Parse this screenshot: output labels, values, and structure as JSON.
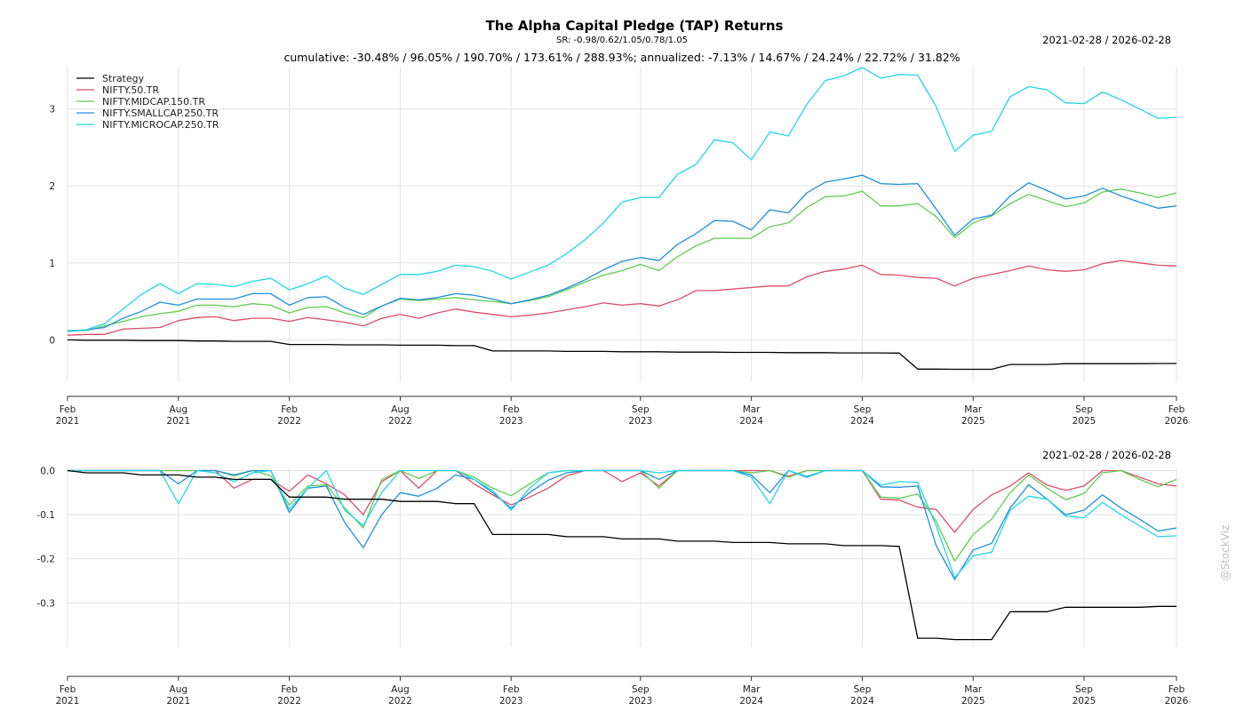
{
  "header": {
    "title": "The Alpha Capital Pledge (TAP) Returns",
    "sharpe": "SR: -0.98/0.62/1.05/0.78/1.05",
    "stats": "cumulative: -30.48% / 96.05% / 190.70% / 173.61% / 288.93%; annualized: -7.13% / 14.67% / 24.24% / 22.72% / 31.82%",
    "date_range_top": "2021-02-28 / 2026-02-28",
    "date_range_bottom": "2021-02-28 / 2026-02-28",
    "watermark": "@StockViz"
  },
  "chart_data": [
    {
      "type": "line",
      "name": "cumulative-returns",
      "x": [
        "2021-02",
        "2021-03",
        "2021-04",
        "2021-05",
        "2021-06",
        "2021-07",
        "2021-08",
        "2021-09",
        "2021-10",
        "2021-11",
        "2021-12",
        "2022-01",
        "2022-02",
        "2022-03",
        "2022-04",
        "2022-05",
        "2022-06",
        "2022-07",
        "2022-08",
        "2022-09",
        "2022-10",
        "2022-11",
        "2022-12",
        "2023-01",
        "2023-02",
        "2023-03",
        "2023-04",
        "2023-05",
        "2023-06",
        "2023-07",
        "2023-08",
        "2023-09",
        "2023-10",
        "2023-11",
        "2023-12",
        "2024-01",
        "2024-02",
        "2024-03",
        "2024-04",
        "2024-05",
        "2024-06",
        "2024-07",
        "2024-08",
        "2024-09",
        "2024-10",
        "2024-11",
        "2024-12",
        "2025-01",
        "2025-02",
        "2025-03",
        "2025-04",
        "2025-05",
        "2025-06",
        "2025-07",
        "2025-08",
        "2025-09",
        "2025-10",
        "2025-11",
        "2025-12",
        "2026-01",
        "2026-02"
      ],
      "x_ticks": [
        {
          "date": "2021-02",
          "label": [
            "Feb",
            "2021"
          ]
        },
        {
          "date": "2021-08",
          "label": [
            "Aug",
            "2021"
          ]
        },
        {
          "date": "2022-02",
          "label": [
            "Feb",
            "2022"
          ]
        },
        {
          "date": "2022-08",
          "label": [
            "Aug",
            "2022"
          ]
        },
        {
          "date": "2023-02",
          "label": [
            "Feb",
            "2023"
          ]
        },
        {
          "date": "2023-09",
          "label": [
            "Sep",
            "2023"
          ]
        },
        {
          "date": "2024-03",
          "label": [
            "Mar",
            "2024"
          ]
        },
        {
          "date": "2024-09",
          "label": [
            "Sep",
            "2024"
          ]
        },
        {
          "date": "2025-03",
          "label": [
            "Mar",
            "2025"
          ]
        },
        {
          "date": "2025-09",
          "label": [
            "Sep",
            "2025"
          ]
        },
        {
          "date": "2026-02",
          "label": [
            "Feb",
            "2026"
          ]
        }
      ],
      "y_ticks": [
        0,
        1,
        2,
        3
      ],
      "ylim": [
        -0.55,
        3.55
      ],
      "grid": true,
      "legend_position": "top-left",
      "series": [
        {
          "name": "Strategy",
          "color": "#000000",
          "values": [
            0,
            -0.005,
            -0.005,
            -0.005,
            -0.01,
            -0.01,
            -0.01,
            -0.015,
            -0.015,
            -0.02,
            -0.02,
            -0.02,
            -0.06,
            -0.06,
            -0.06,
            -0.065,
            -0.065,
            -0.065,
            -0.07,
            -0.07,
            -0.07,
            -0.075,
            -0.075,
            -0.145,
            -0.145,
            -0.145,
            -0.145,
            -0.15,
            -0.15,
            -0.15,
            -0.155,
            -0.155,
            -0.155,
            -0.16,
            -0.16,
            -0.16,
            -0.163,
            -0.163,
            -0.163,
            -0.166,
            -0.166,
            -0.166,
            -0.17,
            -0.17,
            -0.17,
            -0.172,
            -0.38,
            -0.38,
            -0.383,
            -0.383,
            -0.383,
            -0.32,
            -0.32,
            -0.32,
            -0.31,
            -0.31,
            -0.31,
            -0.31,
            -0.31,
            -0.308,
            -0.308
          ]
        },
        {
          "name": "NIFTY.50.TR",
          "color": "#dc4d6b",
          "values": [
            0.06,
            0.07,
            0.07,
            0.14,
            0.15,
            0.16,
            0.25,
            0.29,
            0.3,
            0.25,
            0.28,
            0.28,
            0.24,
            0.29,
            0.26,
            0.23,
            0.18,
            0.28,
            0.33,
            0.28,
            0.35,
            0.4,
            0.36,
            0.33,
            0.3,
            0.32,
            0.35,
            0.39,
            0.43,
            0.48,
            0.45,
            0.47,
            0.44,
            0.52,
            0.64,
            0.64,
            0.66,
            0.68,
            0.7,
            0.7,
            0.82,
            0.89,
            0.92,
            0.97,
            0.85,
            0.84,
            0.81,
            0.8,
            0.7,
            0.8,
            0.85,
            0.9,
            0.96,
            0.91,
            0.89,
            0.91,
            0.99,
            1.03,
            1.0,
            0.97,
            0.96
          ]
        },
        {
          "name": "NIFTY.MIDCAP.150.TR",
          "color": "#5fcd4f",
          "values": [
            0.12,
            0.12,
            0.18,
            0.24,
            0.3,
            0.34,
            0.37,
            0.45,
            0.45,
            0.43,
            0.47,
            0.45,
            0.35,
            0.42,
            0.43,
            0.35,
            0.29,
            0.44,
            0.53,
            0.51,
            0.53,
            0.55,
            0.52,
            0.5,
            0.47,
            0.51,
            0.56,
            0.65,
            0.75,
            0.84,
            0.9,
            0.98,
            0.9,
            1.08,
            1.22,
            1.32,
            1.32,
            1.32,
            1.47,
            1.52,
            1.72,
            1.86,
            1.87,
            1.93,
            1.74,
            1.74,
            1.77,
            1.6,
            1.33,
            1.52,
            1.61,
            1.77,
            1.89,
            1.81,
            1.73,
            1.78,
            1.92,
            1.96,
            1.91,
            1.85,
            1.91
          ]
        },
        {
          "name": "NIFTY.SMALLCAP.250.TR",
          "color": "#1e90d9",
          "values": [
            0.11,
            0.13,
            0.16,
            0.28,
            0.37,
            0.49,
            0.45,
            0.53,
            0.53,
            0.53,
            0.6,
            0.6,
            0.45,
            0.55,
            0.56,
            0.42,
            0.33,
            0.44,
            0.54,
            0.52,
            0.55,
            0.6,
            0.58,
            0.53,
            0.47,
            0.52,
            0.58,
            0.67,
            0.78,
            0.91,
            1.02,
            1.07,
            1.03,
            1.24,
            1.38,
            1.55,
            1.54,
            1.43,
            1.69,
            1.65,
            1.91,
            2.05,
            2.09,
            2.14,
            2.03,
            2.02,
            2.03,
            1.7,
            1.36,
            1.57,
            1.62,
            1.87,
            2.04,
            1.94,
            1.83,
            1.87,
            1.97,
            1.87,
            1.79,
            1.71,
            1.74
          ]
        },
        {
          "name": "NIFTY.MICROCAP.250.TR",
          "color": "#22d5e6",
          "values": [
            0.12,
            0.13,
            0.21,
            0.4,
            0.59,
            0.73,
            0.6,
            0.73,
            0.72,
            0.69,
            0.76,
            0.8,
            0.65,
            0.73,
            0.83,
            0.67,
            0.59,
            0.72,
            0.85,
            0.85,
            0.89,
            0.97,
            0.95,
            0.89,
            0.79,
            0.88,
            0.97,
            1.12,
            1.3,
            1.52,
            1.79,
            1.85,
            1.85,
            2.15,
            2.28,
            2.6,
            2.56,
            2.34,
            2.7,
            2.65,
            3.06,
            3.37,
            3.43,
            3.54,
            3.4,
            3.45,
            3.44,
            3.03,
            2.45,
            2.66,
            2.71,
            3.16,
            3.29,
            3.25,
            3.08,
            3.07,
            3.22,
            3.12,
            3.0,
            2.88,
            2.89
          ]
        }
      ]
    },
    {
      "type": "line",
      "name": "drawdowns",
      "x_ticks_same_as_first": true,
      "y_ticks": [
        0.0,
        -0.1,
        -0.2,
        -0.3
      ],
      "y_tick_labels": [
        "0.0",
        "-0.1",
        "-0.2",
        "-0.3"
      ],
      "ylim": [
        -0.4,
        0.005
      ],
      "grid": true,
      "series": [
        {
          "name": "Strategy",
          "color": "#000000",
          "values": [
            0,
            -0.005,
            -0.005,
            -0.005,
            -0.01,
            -0.01,
            -0.01,
            -0.015,
            -0.015,
            -0.02,
            -0.02,
            -0.02,
            -0.06,
            -0.06,
            -0.06,
            -0.065,
            -0.065,
            -0.065,
            -0.07,
            -0.07,
            -0.07,
            -0.075,
            -0.075,
            -0.145,
            -0.145,
            -0.145,
            -0.145,
            -0.15,
            -0.15,
            -0.15,
            -0.155,
            -0.155,
            -0.155,
            -0.16,
            -0.16,
            -0.16,
            -0.163,
            -0.163,
            -0.163,
            -0.166,
            -0.166,
            -0.166,
            -0.17,
            -0.17,
            -0.17,
            -0.172,
            -0.38,
            -0.38,
            -0.383,
            -0.383,
            -0.383,
            -0.32,
            -0.32,
            -0.32,
            -0.31,
            -0.31,
            -0.31,
            -0.31,
            -0.31,
            -0.308,
            -0.308
          ]
        },
        {
          "name": "NIFTY.50.TR",
          "color": "#dc4d6b",
          "values": [
            0,
            0,
            0,
            0,
            0,
            0,
            0,
            0,
            0,
            -0.04,
            -0.02,
            -0.02,
            -0.047,
            -0.01,
            -0.03,
            -0.055,
            -0.1,
            -0.025,
            0,
            -0.04,
            0,
            0,
            -0.03,
            -0.055,
            -0.078,
            -0.06,
            -0.04,
            -0.012,
            0,
            0,
            -0.025,
            -0.005,
            -0.035,
            0,
            0,
            0,
            0,
            0,
            0,
            -0.013,
            0,
            0,
            0,
            0,
            -0.065,
            -0.067,
            -0.083,
            -0.088,
            -0.14,
            -0.088,
            -0.055,
            -0.035,
            -0.005,
            -0.033,
            -0.045,
            -0.035,
            0,
            0,
            -0.015,
            -0.03,
            -0.035
          ]
        },
        {
          "name": "NIFTY.MIDCAP.150.TR",
          "color": "#5fcd4f",
          "values": [
            0,
            0,
            0,
            0,
            0,
            0,
            0,
            0,
            0,
            -0.012,
            0,
            -0.012,
            -0.078,
            -0.035,
            -0.032,
            -0.085,
            -0.13,
            -0.02,
            0,
            -0.018,
            0,
            0,
            -0.015,
            -0.04,
            -0.057,
            -0.03,
            -0.005,
            0,
            0,
            0,
            0,
            0,
            -0.04,
            0,
            0,
            0,
            0,
            -0.005,
            0,
            -0.015,
            0,
            0,
            0,
            0,
            -0.06,
            -0.063,
            -0.053,
            -0.115,
            -0.205,
            -0.145,
            -0.11,
            -0.05,
            -0.01,
            -0.04,
            -0.066,
            -0.052,
            -0.005,
            0,
            -0.02,
            -0.037,
            -0.02
          ]
        },
        {
          "name": "NIFTY.SMALLCAP.250.TR",
          "color": "#1e90d9",
          "values": [
            0,
            0,
            0,
            0,
            0,
            0,
            -0.03,
            0,
            0,
            -0.01,
            0,
            0,
            -0.095,
            -0.04,
            -0.035,
            -0.118,
            -0.175,
            -0.1,
            -0.05,
            -0.058,
            -0.04,
            -0.01,
            -0.02,
            -0.05,
            -0.085,
            -0.05,
            -0.022,
            -0.005,
            0,
            0,
            0,
            0,
            -0.02,
            0,
            0,
            0,
            0,
            -0.01,
            -0.05,
            0,
            -0.015,
            0,
            0,
            0,
            -0.037,
            -0.038,
            -0.035,
            -0.17,
            -0.247,
            -0.18,
            -0.165,
            -0.085,
            -0.032,
            -0.065,
            -0.1,
            -0.09,
            -0.055,
            -0.085,
            -0.11,
            -0.137,
            -0.13
          ]
        },
        {
          "name": "NIFTY.MICROCAP.250.TR",
          "color": "#22d5e6",
          "values": [
            0,
            0,
            0,
            0,
            0,
            0,
            -0.075,
            0,
            -0.005,
            -0.025,
            -0.005,
            0,
            -0.088,
            -0.04,
            0,
            -0.09,
            -0.125,
            -0.05,
            0,
            0,
            0,
            0,
            -0.02,
            -0.045,
            -0.09,
            -0.04,
            -0.005,
            0,
            0,
            0,
            0,
            0,
            -0.005,
            0,
            0,
            0,
            0,
            -0.015,
            -0.075,
            0,
            -0.013,
            0,
            0,
            0,
            -0.033,
            -0.025,
            -0.027,
            -0.125,
            -0.243,
            -0.193,
            -0.185,
            -0.09,
            -0.058,
            -0.065,
            -0.103,
            -0.107,
            -0.072,
            -0.1,
            -0.125,
            -0.15,
            -0.148
          ]
        }
      ]
    }
  ]
}
